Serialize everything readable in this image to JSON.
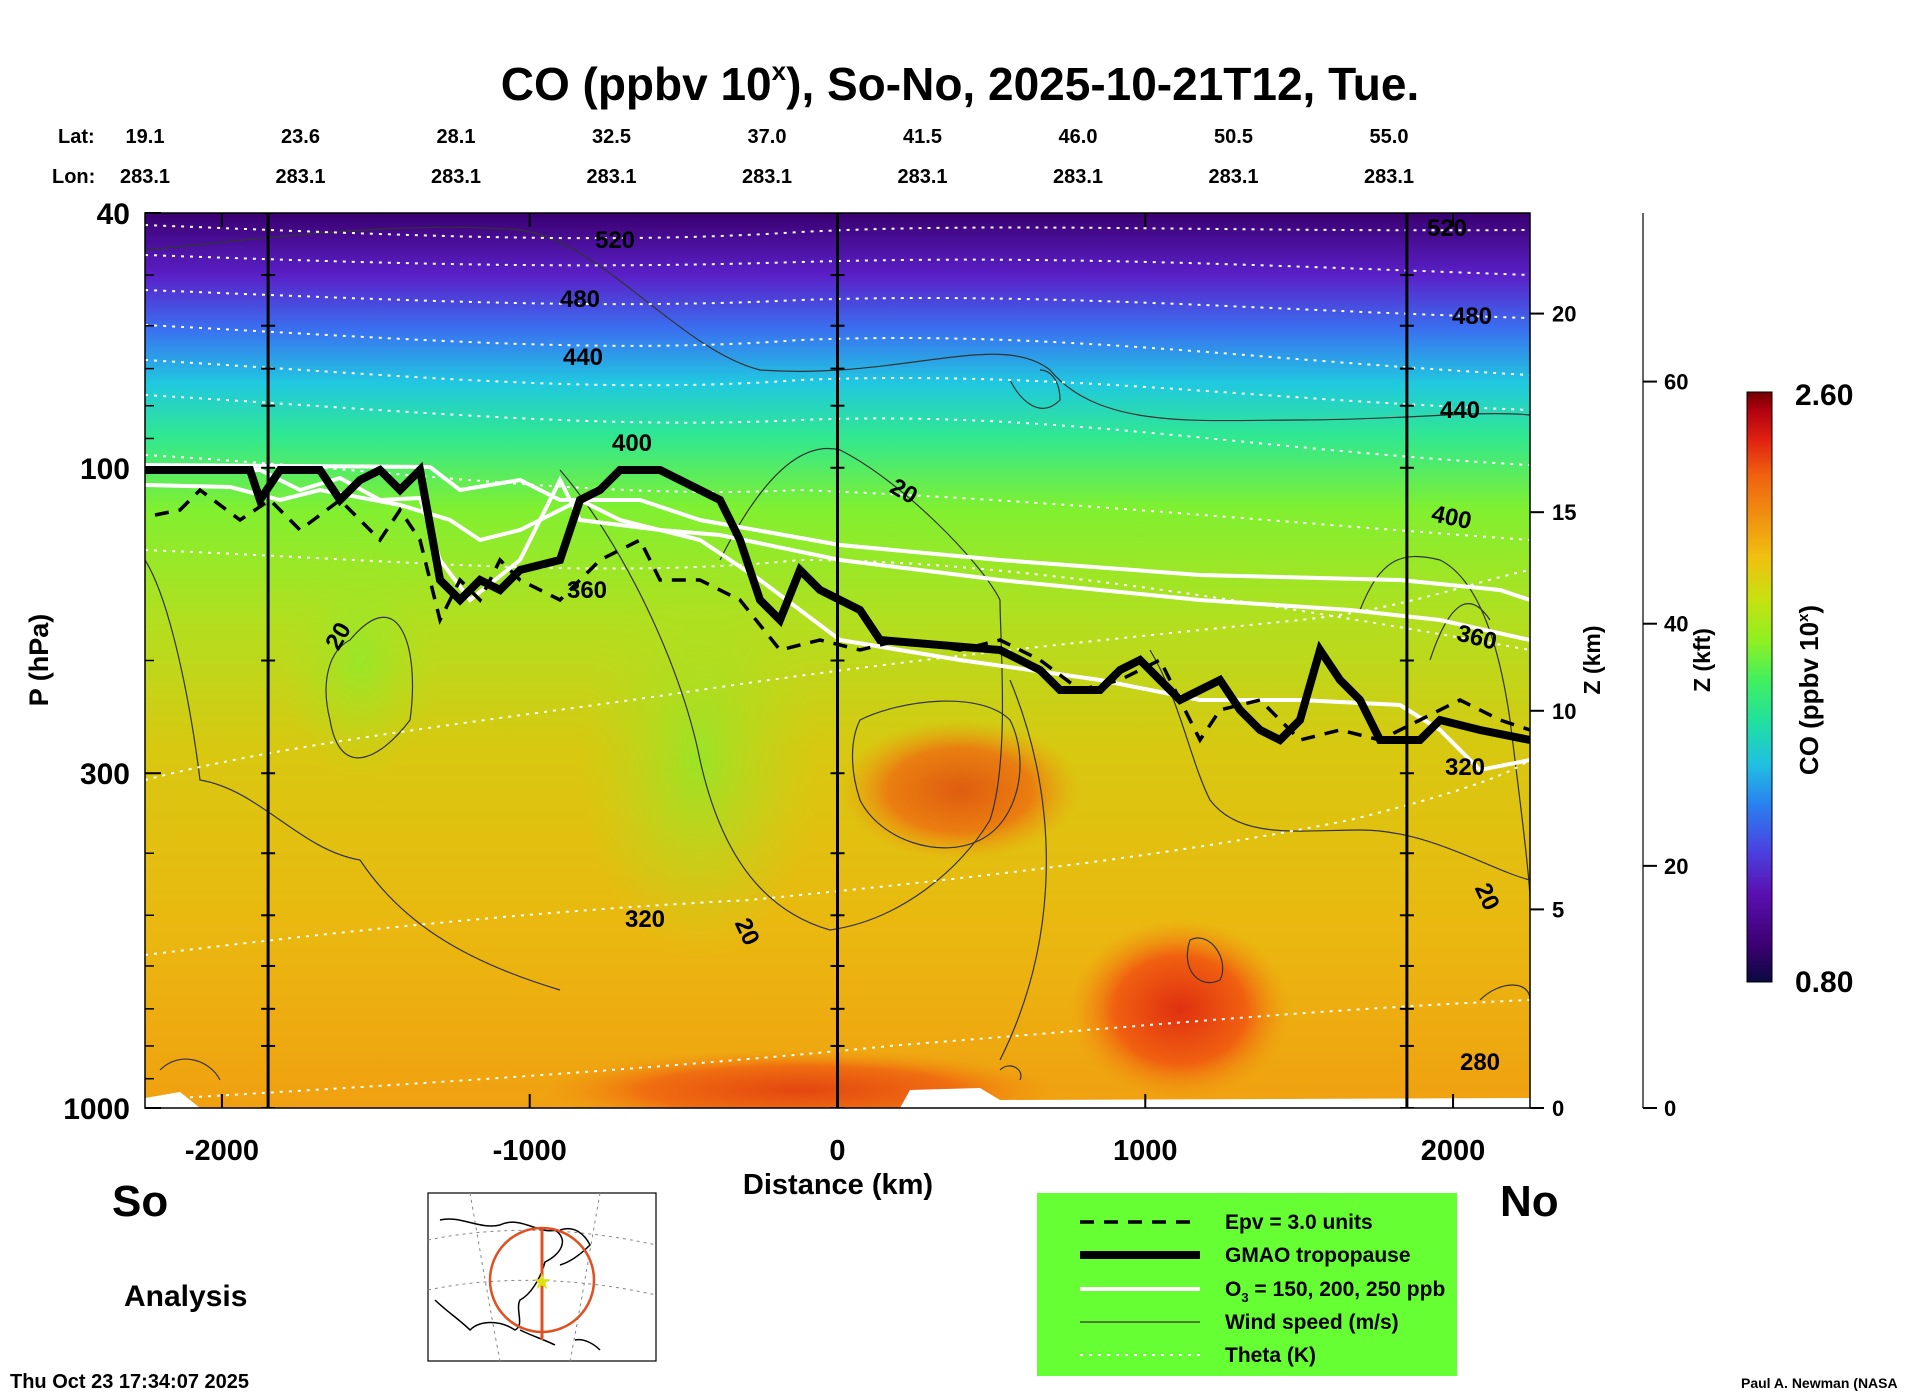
{
  "chart_data": {
    "type": "heatmap",
    "title_main": "CO (ppbv 10",
    "title_sup": "x",
    "title_rest": "), So-No, 2025-10-21T12, Tue.",
    "lat_label": "Lat:",
    "lon_label": "Lon:",
    "lat_ticks": [
      "19.1",
      "23.6",
      "28.1",
      "32.5",
      "37.0",
      "41.5",
      "46.0",
      "50.5",
      "55.0"
    ],
    "lon_ticks": [
      "283.1",
      "283.1",
      "283.1",
      "283.1",
      "283.1",
      "283.1",
      "283.1",
      "283.1",
      "283.1"
    ],
    "xlabel": "Distance (km)",
    "xlim": [
      -2250,
      2250
    ],
    "x_ticks": [
      -2000,
      -1000,
      0,
      1000,
      2000
    ],
    "x_tick_labels": [
      "-2000",
      "-1000",
      "0",
      "1000",
      "2000"
    ],
    "ylabel": "P (hPa)",
    "ylim": [
      1000,
      40
    ],
    "y_ticks": [
      40,
      100,
      300,
      1000
    ],
    "y_tick_labels": [
      "40",
      "100",
      "300",
      "1000"
    ],
    "z_km_label": "Z (km)",
    "z_km_ticks": [
      "0",
      "5",
      "10",
      "15",
      "20"
    ],
    "z_kft_label": "Z (kft)",
    "z_kft_ticks": [
      "0",
      "20",
      "40",
      "60"
    ],
    "colorbar": {
      "label": "CO (ppbv 10",
      "label_sup": "x",
      "label_end": ")",
      "max_label": "2.60",
      "min_label": "0.80",
      "range": [
        0.8,
        2.6
      ],
      "colors": [
        "#0a0a40",
        "#3a0070",
        "#5a10b0",
        "#4a40e0",
        "#2a80f0",
        "#20c0e0",
        "#20e0a0",
        "#40f060",
        "#90f020",
        "#c8e010",
        "#f0c010",
        "#f09010",
        "#f06010",
        "#e02010",
        "#b00010",
        "#700000"
      ]
    },
    "theta_labels": [
      "520",
      "480",
      "440",
      "400",
      "360",
      "320",
      "280"
    ],
    "wind_labels": [
      "20"
    ],
    "vertical_lines_km": [
      -1850,
      0,
      1850
    ],
    "labels": {
      "south": "So",
      "north": "No",
      "analysis": "Analysis",
      "timestamp": "Thu Oct 23 17:34:07 2025",
      "credit": "Paul A. Newman (NASA"
    },
    "legend": {
      "background": "#66ff33",
      "items": [
        {
          "label": "Epv = 3.0 units",
          "style": "dashed"
        },
        {
          "label": "GMAO tropopause",
          "style": "thick"
        },
        {
          "label": "O",
          "sub": "3",
          "rest": " = 150, 200, 250 ppb",
          "style": "white"
        },
        {
          "label": "Wind speed (m/s)",
          "style": "thin"
        },
        {
          "label": "Theta (K)",
          "style": "dotted"
        }
      ]
    }
  }
}
